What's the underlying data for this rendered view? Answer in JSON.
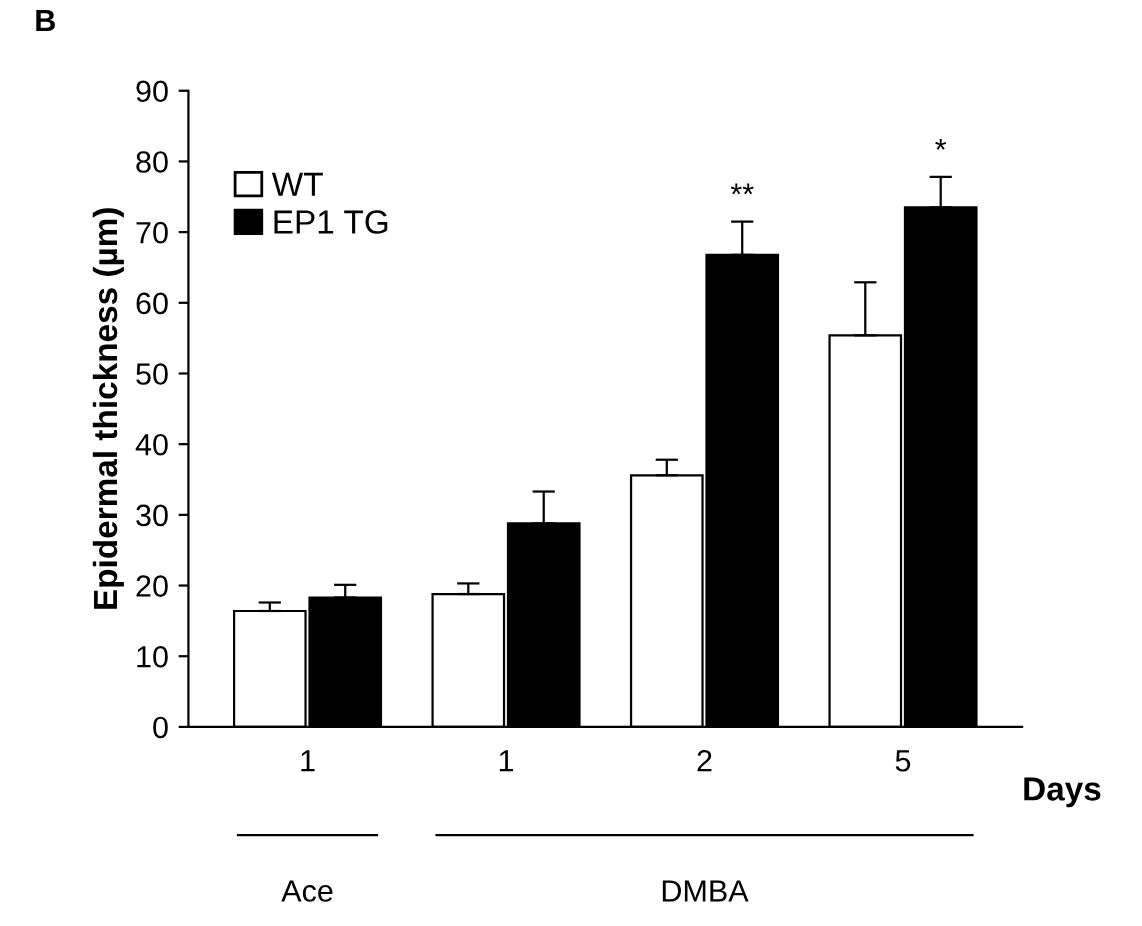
{
  "chart_data": {
    "type": "bar",
    "ylabel": "Epidermal thickness (µm)",
    "categories": [
      "1",
      "1",
      "2",
      "5"
    ],
    "series": [
      {
        "name": "WT",
        "color": "#ffffff",
        "values": [
          16.4,
          18.8,
          35.6,
          55.4
        ],
        "errors": [
          1.2,
          1.5,
          2.2,
          7.5
        ]
      },
      {
        "name": "EP1 TG",
        "color": "#000000",
        "values": [
          18.3,
          28.8,
          66.8,
          73.5
        ],
        "errors": [
          1.8,
          4.5,
          4.7,
          4.3
        ]
      }
    ],
    "ylim": [
      0,
      90
    ],
    "yticks": [
      0,
      10,
      20,
      30,
      40,
      50,
      60,
      70,
      80,
      90
    ],
    "legend": "top left",
    "grid": false,
    "annotations": [
      "B",
      "Days",
      "Ace",
      "DMBA",
      "**",
      "*"
    ]
  }
}
